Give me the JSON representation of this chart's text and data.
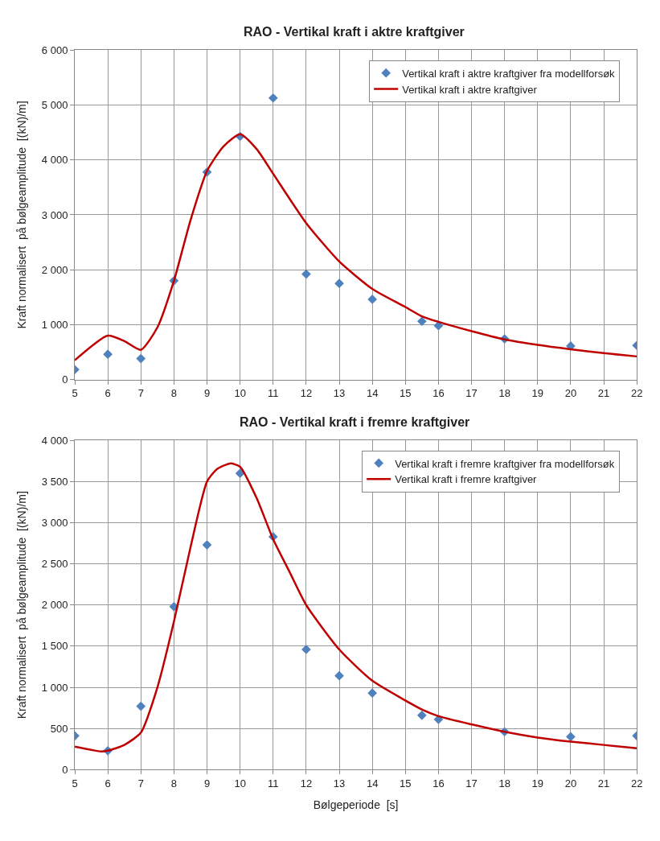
{
  "chart_data": [
    {
      "type": "scatter",
      "title": "RAO - Vertikal kraft i aktre kraftgiver",
      "ylabel": "Kraft normalisert  på bølgeamplitude  [(kN)/m]",
      "xlim": [
        5,
        22
      ],
      "xticks": [
        5,
        6,
        7,
        8,
        9,
        10,
        11,
        12,
        13,
        14,
        15,
        16,
        17,
        18,
        19,
        20,
        21,
        22
      ],
      "ylim": [
        0,
        6000
      ],
      "yticks": [
        0,
        {
          "value": 1000,
          "label": "1 000"
        },
        {
          "value": 2000,
          "label": "2 000"
        },
        {
          "value": 3000,
          "label": "3 000"
        },
        {
          "value": 4000,
          "label": "4 000"
        },
        {
          "value": 5000,
          "label": "5 000"
        },
        {
          "value": 6000,
          "label": "6 000"
        }
      ],
      "grid": true,
      "legend": "top right",
      "series": [
        {
          "name": "Vertikal kraft i aktre kraftgiver fra modellforsøk",
          "marker": "diamond",
          "color": "#4f81bd",
          "x": [
            5,
            6,
            7,
            8,
            9,
            10,
            11,
            12,
            13,
            14,
            15.5,
            16,
            18,
            20,
            22
          ],
          "values": [
            180,
            460,
            380,
            1800,
            3780,
            4430,
            5130,
            1920,
            1750,
            1460,
            1060,
            980,
            740,
            610,
            620
          ]
        },
        {
          "name": "Vertikal kraft i aktre kraftgiver",
          "type": "line",
          "marker": "none",
          "line_style": "solid",
          "color": "#c00000",
          "x": [
            5,
            6,
            6.5,
            7,
            7.5,
            8,
            8.5,
            9,
            9.5,
            10,
            10.5,
            11,
            12,
            13,
            14,
            15,
            15.5,
            16,
            17,
            18,
            19,
            20,
            21,
            22
          ],
          "values": [
            350,
            800,
            700,
            540,
            950,
            1800,
            2900,
            3800,
            4250,
            4470,
            4200,
            3750,
            2850,
            2150,
            1650,
            1320,
            1150,
            1050,
            880,
            730,
            630,
            550,
            480,
            420
          ]
        }
      ]
    },
    {
      "type": "scatter",
      "title": "RAO - Vertikal kraft i fremre kraftgiver",
      "xlabel": "Bølgeperiode  [s]",
      "ylabel": "Kraft normalisert  på bølgeamplitude  [(kN)/m]",
      "xlim": [
        5,
        22
      ],
      "xticks": [
        5,
        6,
        7,
        8,
        9,
        10,
        11,
        12,
        13,
        14,
        15,
        16,
        17,
        18,
        19,
        20,
        21,
        22
      ],
      "ylim": [
        0,
        4000
      ],
      "yticks": [
        0,
        500,
        {
          "value": 1000,
          "label": "1 000"
        },
        {
          "value": 1500,
          "label": "1 500"
        },
        {
          "value": 2000,
          "label": "2 000"
        },
        {
          "value": 2500,
          "label": "2 500"
        },
        {
          "value": 3000,
          "label": "3 000"
        },
        {
          "value": 3500,
          "label": "3 500"
        },
        {
          "value": 4000,
          "label": "4 000"
        }
      ],
      "grid": true,
      "legend": "top right",
      "series": [
        {
          "name": "Vertikal kraft i fremre kraftgiver fra modellforsøk",
          "marker": "diamond",
          "color": "#4f81bd",
          "x": [
            5,
            6,
            7,
            8,
            9,
            10,
            11,
            12,
            13,
            14,
            15.5,
            16,
            18,
            20,
            22
          ],
          "values": [
            410,
            230,
            770,
            1980,
            2730,
            3600,
            2830,
            1460,
            1140,
            930,
            660,
            610,
            460,
            400,
            410
          ]
        },
        {
          "name": "Vertikal kraft i fremre kraftgiver",
          "type": "line",
          "marker": "none",
          "line_style": "solid",
          "color": "#c00000",
          "x": [
            5,
            5.5,
            5.8,
            6,
            6.5,
            7,
            7.5,
            8,
            8.5,
            9,
            9.3,
            9.7,
            10,
            10.5,
            11,
            11.5,
            12,
            13,
            14,
            15,
            15.5,
            16,
            17,
            18,
            19,
            20,
            21,
            22
          ],
          "values": [
            280,
            240,
            220,
            230,
            300,
            450,
            1000,
            1800,
            2700,
            3500,
            3650,
            3720,
            3680,
            3300,
            2800,
            2400,
            2000,
            1460,
            1080,
            840,
            730,
            650,
            550,
            460,
            390,
            340,
            300,
            260
          ]
        }
      ]
    }
  ]
}
